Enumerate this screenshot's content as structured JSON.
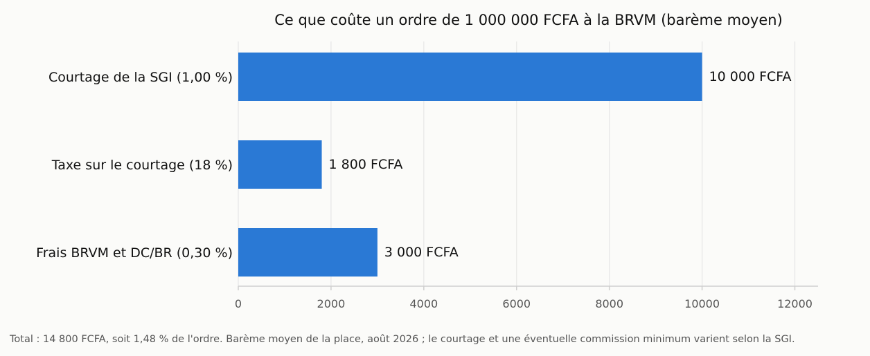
{
  "chart_data": {
    "type": "bar",
    "orientation": "horizontal",
    "title": "Ce que coûte un ordre de 1 000 000 FCFA à la BRVM (barème moyen)",
    "categories": [
      "Courtage de la SGI (1,00 %)",
      "Taxe sur le courtage (18 %)",
      "Frais BRVM et DC/BR (0,30 %)"
    ],
    "values": [
      10000,
      1800,
      3000
    ],
    "data_labels": [
      "10 000 FCFA",
      "1 800 FCFA",
      "3 000 FCFA"
    ],
    "x_ticks": [
      "0",
      "2000",
      "4000",
      "6000",
      "8000",
      "10000",
      "12000"
    ],
    "xlim": [
      0,
      12500
    ],
    "grid": "vertical",
    "bar_color": "#2a79d5"
  },
  "footnote": "Total : 14 800 FCFA, soit 1,48 % de l'ordre. Barème moyen de la place, août 2026 ; le courtage et une éventuelle commission minimum varient selon la SGI."
}
